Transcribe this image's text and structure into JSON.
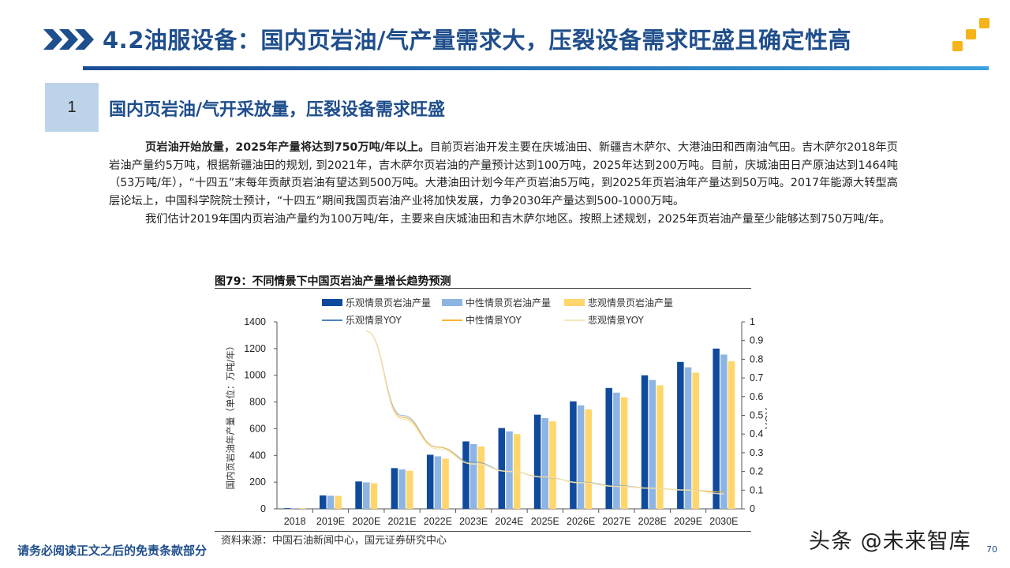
{
  "header": {
    "title": "4.2油服设备：国内页岩油/气产量需求大，压裂设备需求旺盛且确定性高",
    "chevron_icon": "triple-chevron-right",
    "logo_icon": "three-gold-squares-staircase"
  },
  "section": {
    "number": "1",
    "title": "国内页岩油/气开采放量，压裂设备需求旺盛"
  },
  "body": {
    "p1_bold": "页岩油开始放量，2025年产量将达到750万吨/年以上。",
    "p1_rest": "目前页岩油开发主要在庆城油田、新疆吉木萨尔、大港油田和西南油气田。吉木萨尔2018年页岩油产量约5万吨，根据新疆油田的规划, 到2021年，吉木萨尔页岩油的产量预计达到100万吨，2025年达到200万吨。目前，庆城油田日产原油达到1464吨（53万吨/年），“十四五”末每年贡献页岩油有望达到500万吨。大港油田计划今年产页岩油5万吨，到2025年页岩油年产量达到50万吨。2017年能源大转型高层论坛上，中国科学院院士预计，“十四五”期间我国页岩油产业将加快发展，力争2030年产量达到500-1000万吨。",
    "p2": "我们估计2019年国内页岩油产量约为100万吨/年，主要来自庆城油田和吉木萨尔地区。按照上述规划，2025年页岩油产量至少能够达到750万吨/年。"
  },
  "figure": {
    "title": "图79：不同情景下中国页岩油产量增长趋势预测",
    "source": "资料来源：中国石油新闻中心，国元证券研究中心"
  },
  "chart_data": {
    "type": "bar",
    "title": "图79：不同情景下中国页岩油产量增长趋势预测",
    "categories": [
      "2018",
      "2019E",
      "2020E",
      "2021E",
      "2022E",
      "2023E",
      "2024E",
      "2025E",
      "2026E",
      "2027E",
      "2028E",
      "2029E",
      "2030E"
    ],
    "ylabel": "国内页岩油年产量（单位：万吨/年）",
    "y2label": "YOY",
    "ylim": [
      0,
      1400
    ],
    "y2lim": [
      0,
      1
    ],
    "yticks": [
      0,
      200,
      400,
      600,
      800,
      1000,
      1200,
      1400
    ],
    "y2ticks": [
      0,
      0.1,
      0.2,
      0.3,
      0.4,
      0.5,
      0.6,
      0.7,
      0.8,
      0.9,
      1
    ],
    "series": [
      {
        "name": "乐观情景页岩油产量",
        "kind": "bar",
        "axis": "left",
        "color": "#0f4a9c",
        "values": [
          5,
          100,
          205,
          305,
          405,
          505,
          605,
          705,
          805,
          905,
          1000,
          1100,
          1200
        ]
      },
      {
        "name": "中性情景页岩油产量",
        "kind": "bar",
        "axis": "left",
        "color": "#8db4e2",
        "values": [
          5,
          98,
          198,
          295,
          393,
          485,
          580,
          680,
          775,
          870,
          965,
          1060,
          1155
        ]
      },
      {
        "name": "悲观情景页岩油产量",
        "kind": "bar",
        "axis": "left",
        "color": "#ffd66b",
        "values": [
          5,
          97,
          192,
          285,
          375,
          467,
          560,
          655,
          745,
          835,
          925,
          1020,
          1105
        ]
      },
      {
        "name": "乐观情景YOY",
        "kind": "line",
        "axis": "right",
        "color": "#4f81bd",
        "values": [
          null,
          null,
          0.95,
          0.5,
          0.33,
          0.25,
          0.2,
          0.167,
          0.143,
          0.125,
          0.11,
          0.1,
          0.09
        ]
      },
      {
        "name": "中性情景YOY",
        "kind": "line",
        "axis": "right",
        "color": "#f2b632",
        "values": [
          null,
          null,
          0.95,
          0.49,
          0.33,
          0.24,
          0.2,
          0.17,
          0.14,
          0.12,
          0.11,
          0.1,
          0.09
        ]
      },
      {
        "name": "悲观情景YOY",
        "kind": "line",
        "axis": "right",
        "color": "#f5e6b8",
        "values": [
          null,
          null,
          0.95,
          0.48,
          0.32,
          0.24,
          0.2,
          0.17,
          0.14,
          0.12,
          0.11,
          0.1,
          0.08
        ]
      }
    ],
    "legend_position": "top",
    "grid": false
  },
  "footer": {
    "disclaimer": "请务必阅读正文之后的免责条款部分",
    "watermark": "头条 @未来智库",
    "page_number": "70"
  }
}
